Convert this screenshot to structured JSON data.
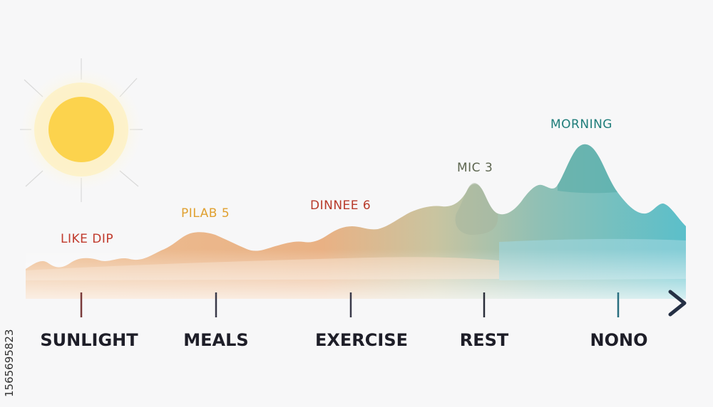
{
  "diagram": {
    "peak_labels": [
      {
        "id": "like-dip",
        "text": "LIKE DIP",
        "color": "#c0392b"
      },
      {
        "id": "pilab",
        "text": "PILAB 5",
        "color": "#e0a030"
      },
      {
        "id": "dinnee",
        "text": "DINNEE 6",
        "color": "#b83a2a"
      },
      {
        "id": "mic",
        "text": "MIC 3",
        "color": "#5d6650"
      },
      {
        "id": "morning",
        "text": "MORNING",
        "color": "#1f7d7a"
      }
    ],
    "axis_labels": [
      {
        "id": "sunlight",
        "text": "SUNLIGHT"
      },
      {
        "id": "meals",
        "text": "MEALS"
      },
      {
        "id": "exercise",
        "text": "EXERCISE"
      },
      {
        "id": "rest",
        "text": "REST"
      },
      {
        "id": "nono",
        "text": "NONO"
      }
    ],
    "colors": {
      "sun": "#fcd34d",
      "warm": "#e8b888",
      "cool": "#6cc3cc",
      "axis_start": "#c0392b",
      "axis_end": "#2c3e50"
    }
  },
  "stock_id": "1565695823"
}
